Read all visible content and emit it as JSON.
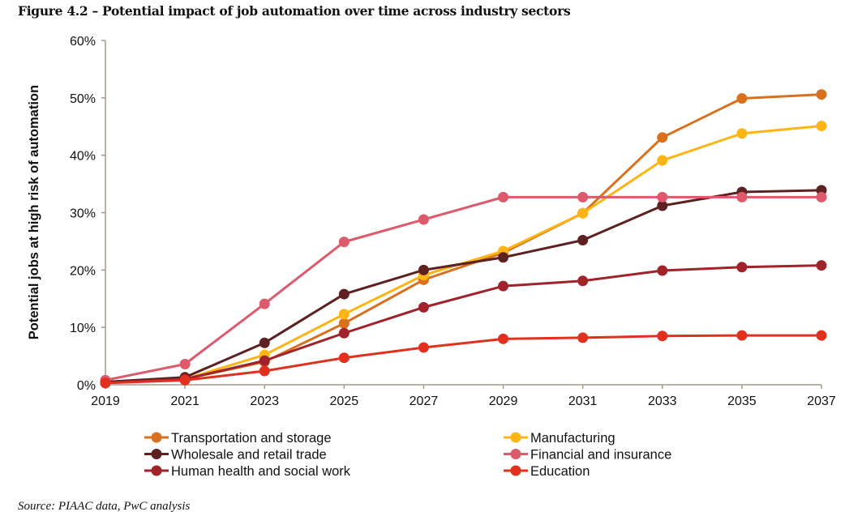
{
  "title": "Figure 4.2 – Potential impact of job automation over time across industry sectors",
  "source": "Source: PIAAC data, PwC analysis",
  "chart_data": {
    "type": "line",
    "title": "Figure 4.2 – Potential impact of job automation over time across industry sectors",
    "xlabel": "",
    "ylabel": "Potential jobs at high risk of automation",
    "x": [
      "2019",
      "2021",
      "2023",
      "2025",
      "2027",
      "2029",
      "2031",
      "2033",
      "2035",
      "2037"
    ],
    "ylim": [
      0,
      60
    ],
    "yticks": [
      "0%",
      "10%",
      "20%",
      "30%",
      "40%",
      "50%",
      "60%"
    ],
    "grid": false,
    "legend_position": "bottom",
    "series": [
      {
        "name": "Transportation and storage",
        "color": "#d9701e",
        "values": [
          0.5,
          1.0,
          4.0,
          10.7,
          18.3,
          23.0,
          29.9,
          43.1,
          49.9,
          50.6
        ]
      },
      {
        "name": "Manufacturing",
        "color": "#fdb515",
        "values": [
          0.5,
          1.0,
          5.2,
          12.3,
          19.1,
          23.3,
          29.9,
          39.1,
          43.8,
          45.1
        ]
      },
      {
        "name": "Wholesale and retail trade",
        "color": "#5c2120",
        "values": [
          0.5,
          1.3,
          7.3,
          15.8,
          20.0,
          22.2,
          25.2,
          31.2,
          33.6,
          33.9
        ]
      },
      {
        "name": "Financial and insurance",
        "color": "#dc5a6c",
        "values": [
          0.8,
          3.6,
          14.1,
          24.9,
          28.8,
          32.7,
          32.7,
          32.7,
          32.7,
          32.7
        ]
      },
      {
        "name": "Human health and social work",
        "color": "#a0222a",
        "values": [
          0.3,
          1.0,
          4.2,
          9.0,
          13.5,
          17.2,
          18.1,
          19.9,
          20.5,
          20.8
        ]
      },
      {
        "name": "Education",
        "color": "#e0301e",
        "values": [
          0.3,
          0.8,
          2.4,
          4.7,
          6.5,
          8.0,
          8.2,
          8.5,
          8.6,
          8.6
        ]
      }
    ]
  }
}
